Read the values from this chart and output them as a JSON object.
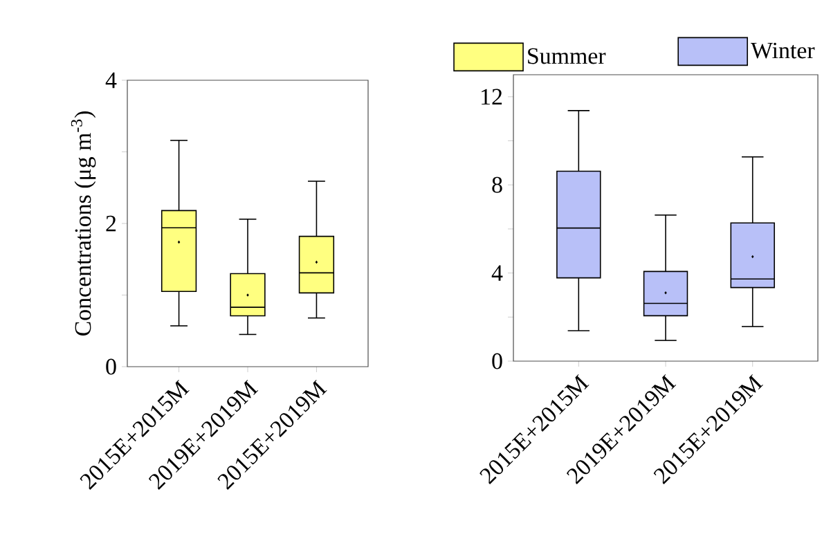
{
  "chart_data": [
    {
      "type": "box",
      "ylabel": "Concentrations (μg m$^{-3}$)",
      "categories": [
        "2015E+2015M",
        "2019E+2019M",
        "2015E+2019M"
      ],
      "ylim": [
        0,
        4
      ],
      "yticks": [
        0,
        {
          "value": 1,
          "label": null
        },
        2,
        {
          "value": 3,
          "label": null
        },
        4
      ],
      "legend": "top right",
      "series": [
        {
          "name": "Summer",
          "color": "#ffff80",
          "boxes": [
            {
              "low": 0.57,
              "q1": 1.05,
              "median": 1.94,
              "q3": 2.18,
              "high": 3.16,
              "mean": 1.74
            },
            {
              "low": 0.45,
              "q1": 0.71,
              "median": 0.83,
              "q3": 1.3,
              "high": 2.06,
              "mean": 1.0
            },
            {
              "low": 0.68,
              "q1": 1.03,
              "median": 1.31,
              "q3": 1.82,
              "high": 2.59,
              "mean": 1.46
            }
          ]
        }
      ]
    },
    {
      "type": "box",
      "categories": [
        "2015E+2015M",
        "2019E+2019M",
        "2015E+2019M"
      ],
      "ylim": [
        0,
        13
      ],
      "yticks": [
        0,
        {
          "value": 2,
          "label": null
        },
        4,
        {
          "value": 6,
          "label": null
        },
        8,
        {
          "value": 10,
          "label": null
        },
        12
      ],
      "legend": "top right",
      "series": [
        {
          "name": "Winter",
          "color": "#b8c0f8",
          "boxes": [
            {
              "low": 1.38,
              "q1": 3.78,
              "median": 6.04,
              "q3": 8.62,
              "high": 11.37
            },
            {
              "low": 0.94,
              "q1": 2.06,
              "median": 2.62,
              "q3": 4.07,
              "high": 6.63,
              "mean": 3.1
            },
            {
              "low": 1.57,
              "q1": 3.34,
              "median": 3.73,
              "q3": 6.27,
              "high": 9.27,
              "mean": 4.74
            }
          ]
        }
      ]
    }
  ]
}
